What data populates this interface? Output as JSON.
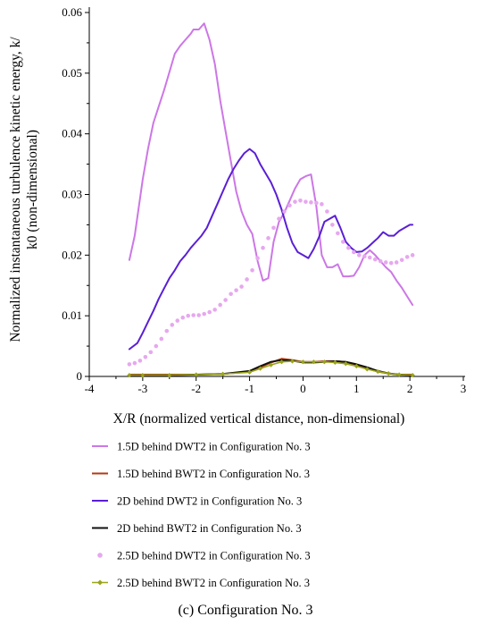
{
  "caption": "(c) Configuration No. 3",
  "chart_data": {
    "type": "line",
    "xlabel": "X/R (normalized vertical distance, non-dimensional)",
    "ylabel_lines": [
      "Normalized instantaneous turbulence kinetic energy, k/",
      "k0 (non-dimensional)"
    ],
    "xlim": [
      -4,
      3
    ],
    "ylim": [
      0,
      0.06
    ],
    "x_ticks": [
      "-4",
      "-3",
      "-2",
      "-1",
      "0",
      "1",
      "2",
      "3"
    ],
    "y_ticks": [
      "0",
      "0.01",
      "0.02",
      "0.03",
      "0.04",
      "0.05",
      "0.06"
    ],
    "grid": false,
    "legend_position": "bottom",
    "series": [
      {
        "name": "1.5D behind DWT2 in Configuration No. 3",
        "color": "#cc77e6",
        "style": "line",
        "x": [
          -3.25,
          -3.15,
          -3.0,
          -2.9,
          -2.8,
          -2.7,
          -2.6,
          -2.5,
          -2.4,
          -2.3,
          -2.2,
          -2.1,
          -2.05,
          -1.95,
          -1.85,
          -1.75,
          -1.65,
          -1.55,
          -1.45,
          -1.35,
          -1.25,
          -1.15,
          -1.05,
          -0.95,
          -0.85,
          -0.75,
          -0.65,
          -0.55,
          -0.45,
          -0.35,
          -0.25,
          -0.15,
          -0.05,
          0.05,
          0.15,
          0.25,
          0.35,
          0.45,
          0.55,
          0.65,
          0.75,
          0.85,
          0.95,
          1.05,
          1.15,
          1.25,
          1.35,
          1.45,
          1.55,
          1.65,
          1.75,
          1.85,
          1.95,
          2.05
        ],
        "y": [
          0.0192,
          0.0232,
          0.0325,
          0.0375,
          0.0418,
          0.0445,
          0.0472,
          0.0502,
          0.0532,
          0.0545,
          0.0555,
          0.0565,
          0.0572,
          0.0572,
          0.0582,
          0.0555,
          0.0515,
          0.0455,
          0.0405,
          0.0355,
          0.0305,
          0.0272,
          0.025,
          0.0235,
          0.019,
          0.0158,
          0.0162,
          0.0222,
          0.0255,
          0.027,
          0.029,
          0.031,
          0.0325,
          0.033,
          0.0333,
          0.028,
          0.02,
          0.018,
          0.018,
          0.0185,
          0.0165,
          0.0165,
          0.0166,
          0.018,
          0.02,
          0.0208,
          0.02,
          0.019,
          0.018,
          0.0172,
          0.0158,
          0.0146,
          0.0132,
          0.0118
        ]
      },
      {
        "name": "1.5D behind BWT2 in Configuration No. 3",
        "color": "#b03a12",
        "style": "line",
        "x": [
          -3.25,
          -3.0,
          -2.5,
          -2.0,
          -1.5,
          -1.0,
          -0.8,
          -0.6,
          -0.4,
          -0.2,
          0.0,
          0.2,
          0.4,
          0.6,
          0.8,
          1.0,
          1.2,
          1.4,
          1.6,
          1.8,
          2.05
        ],
        "y": [
          0.0003,
          0.0003,
          0.0003,
          0.0003,
          0.0004,
          0.0008,
          0.0015,
          0.0023,
          0.0029,
          0.0027,
          0.0024,
          0.0024,
          0.0025,
          0.0025,
          0.0024,
          0.0019,
          0.0013,
          0.0008,
          0.0005,
          0.0003,
          0.0003
        ]
      },
      {
        "name": "2D behind DWT2 in Configuration No. 3",
        "color": "#5a1fd6",
        "style": "line",
        "x": [
          -3.25,
          -3.1,
          -3.0,
          -2.9,
          -2.8,
          -2.7,
          -2.6,
          -2.5,
          -2.4,
          -2.3,
          -2.2,
          -2.1,
          -2.0,
          -1.9,
          -1.8,
          -1.7,
          -1.6,
          -1.5,
          -1.4,
          -1.3,
          -1.2,
          -1.1,
          -1.0,
          -0.9,
          -0.8,
          -0.7,
          -0.6,
          -0.5,
          -0.4,
          -0.3,
          -0.2,
          -0.1,
          0.0,
          0.1,
          0.2,
          0.3,
          0.4,
          0.5,
          0.6,
          0.7,
          0.8,
          0.9,
          1.0,
          1.1,
          1.2,
          1.3,
          1.4,
          1.5,
          1.6,
          1.7,
          1.8,
          1.9,
          2.0,
          2.05
        ],
        "y": [
          0.0045,
          0.0055,
          0.0072,
          0.009,
          0.0108,
          0.0128,
          0.0145,
          0.0162,
          0.0175,
          0.019,
          0.02,
          0.0212,
          0.0222,
          0.0232,
          0.0245,
          0.0265,
          0.0285,
          0.0305,
          0.0325,
          0.0342,
          0.0356,
          0.0368,
          0.0375,
          0.0368,
          0.035,
          0.0335,
          0.032,
          0.03,
          0.0275,
          0.0245,
          0.022,
          0.0205,
          0.02,
          0.0195,
          0.021,
          0.023,
          0.0255,
          0.026,
          0.0265,
          0.0245,
          0.0222,
          0.0212,
          0.0205,
          0.0206,
          0.0212,
          0.022,
          0.0228,
          0.0238,
          0.0232,
          0.0232,
          0.024,
          0.0245,
          0.025,
          0.025
        ]
      },
      {
        "name": "2D behind BWT2 in Configuration No. 3",
        "color": "#111111",
        "style": "line",
        "x": [
          -3.25,
          -3.0,
          -2.5,
          -2.0,
          -1.5,
          -1.0,
          -0.8,
          -0.6,
          -0.4,
          -0.2,
          0.0,
          0.2,
          0.4,
          0.6,
          0.8,
          1.0,
          1.2,
          1.4,
          1.6,
          1.8,
          2.05
        ],
        "y": [
          0.0002,
          0.0002,
          0.0002,
          0.0003,
          0.0004,
          0.0009,
          0.0017,
          0.0024,
          0.0027,
          0.0026,
          0.0023,
          0.0023,
          0.0024,
          0.0025,
          0.0024,
          0.002,
          0.0015,
          0.0009,
          0.0005,
          0.0003,
          0.0002
        ]
      },
      {
        "name": "2.5D behind DWT2 in Configuration No. 3",
        "color": "#e6a8ee",
        "style": "markers",
        "x": [
          -3.25,
          -3.15,
          -3.05,
          -2.95,
          -2.85,
          -2.75,
          -2.65,
          -2.55,
          -2.45,
          -2.35,
          -2.25,
          -2.15,
          -2.05,
          -1.95,
          -1.85,
          -1.75,
          -1.65,
          -1.55,
          -1.45,
          -1.35,
          -1.25,
          -1.15,
          -1.05,
          -0.95,
          -0.85,
          -0.75,
          -0.65,
          -0.55,
          -0.45,
          -0.35,
          -0.25,
          -0.15,
          -0.05,
          0.05,
          0.15,
          0.25,
          0.35,
          0.45,
          0.55,
          0.65,
          0.75,
          0.85,
          0.95,
          1.05,
          1.15,
          1.25,
          1.35,
          1.45,
          1.55,
          1.65,
          1.75,
          1.85,
          1.95,
          2.05
        ],
        "y": [
          0.002,
          0.0022,
          0.0026,
          0.0032,
          0.004,
          0.005,
          0.0062,
          0.0075,
          0.0085,
          0.0092,
          0.0097,
          0.01,
          0.0101,
          0.0101,
          0.0103,
          0.0106,
          0.011,
          0.0118,
          0.0126,
          0.0136,
          0.0142,
          0.0148,
          0.016,
          0.0175,
          0.0195,
          0.0212,
          0.0228,
          0.0245,
          0.026,
          0.0272,
          0.0282,
          0.0288,
          0.029,
          0.0288,
          0.0287,
          0.0286,
          0.0284,
          0.0272,
          0.025,
          0.0236,
          0.0222,
          0.0212,
          0.0205,
          0.02,
          0.0198,
          0.0196,
          0.0193,
          0.019,
          0.0188,
          0.0187,
          0.0188,
          0.0192,
          0.0197,
          0.02
        ]
      },
      {
        "name": "2.5D behind BWT2 in Configuration No. 3",
        "color": "#9aa41a",
        "style": "markers-line",
        "x": [
          -3.25,
          -3.0,
          -2.5,
          -2.0,
          -1.5,
          -1.0,
          -0.8,
          -0.6,
          -0.4,
          -0.2,
          0.0,
          0.2,
          0.4,
          0.6,
          0.8,
          1.0,
          1.2,
          1.4,
          1.6,
          1.8,
          2.05
        ],
        "y": [
          0.0002,
          0.0002,
          0.0002,
          0.0003,
          0.0004,
          0.0007,
          0.0013,
          0.0019,
          0.0024,
          0.0025,
          0.0024,
          0.0024,
          0.0024,
          0.0023,
          0.0021,
          0.0017,
          0.0012,
          0.0008,
          0.0005,
          0.0003,
          0.0002
        ]
      }
    ]
  }
}
